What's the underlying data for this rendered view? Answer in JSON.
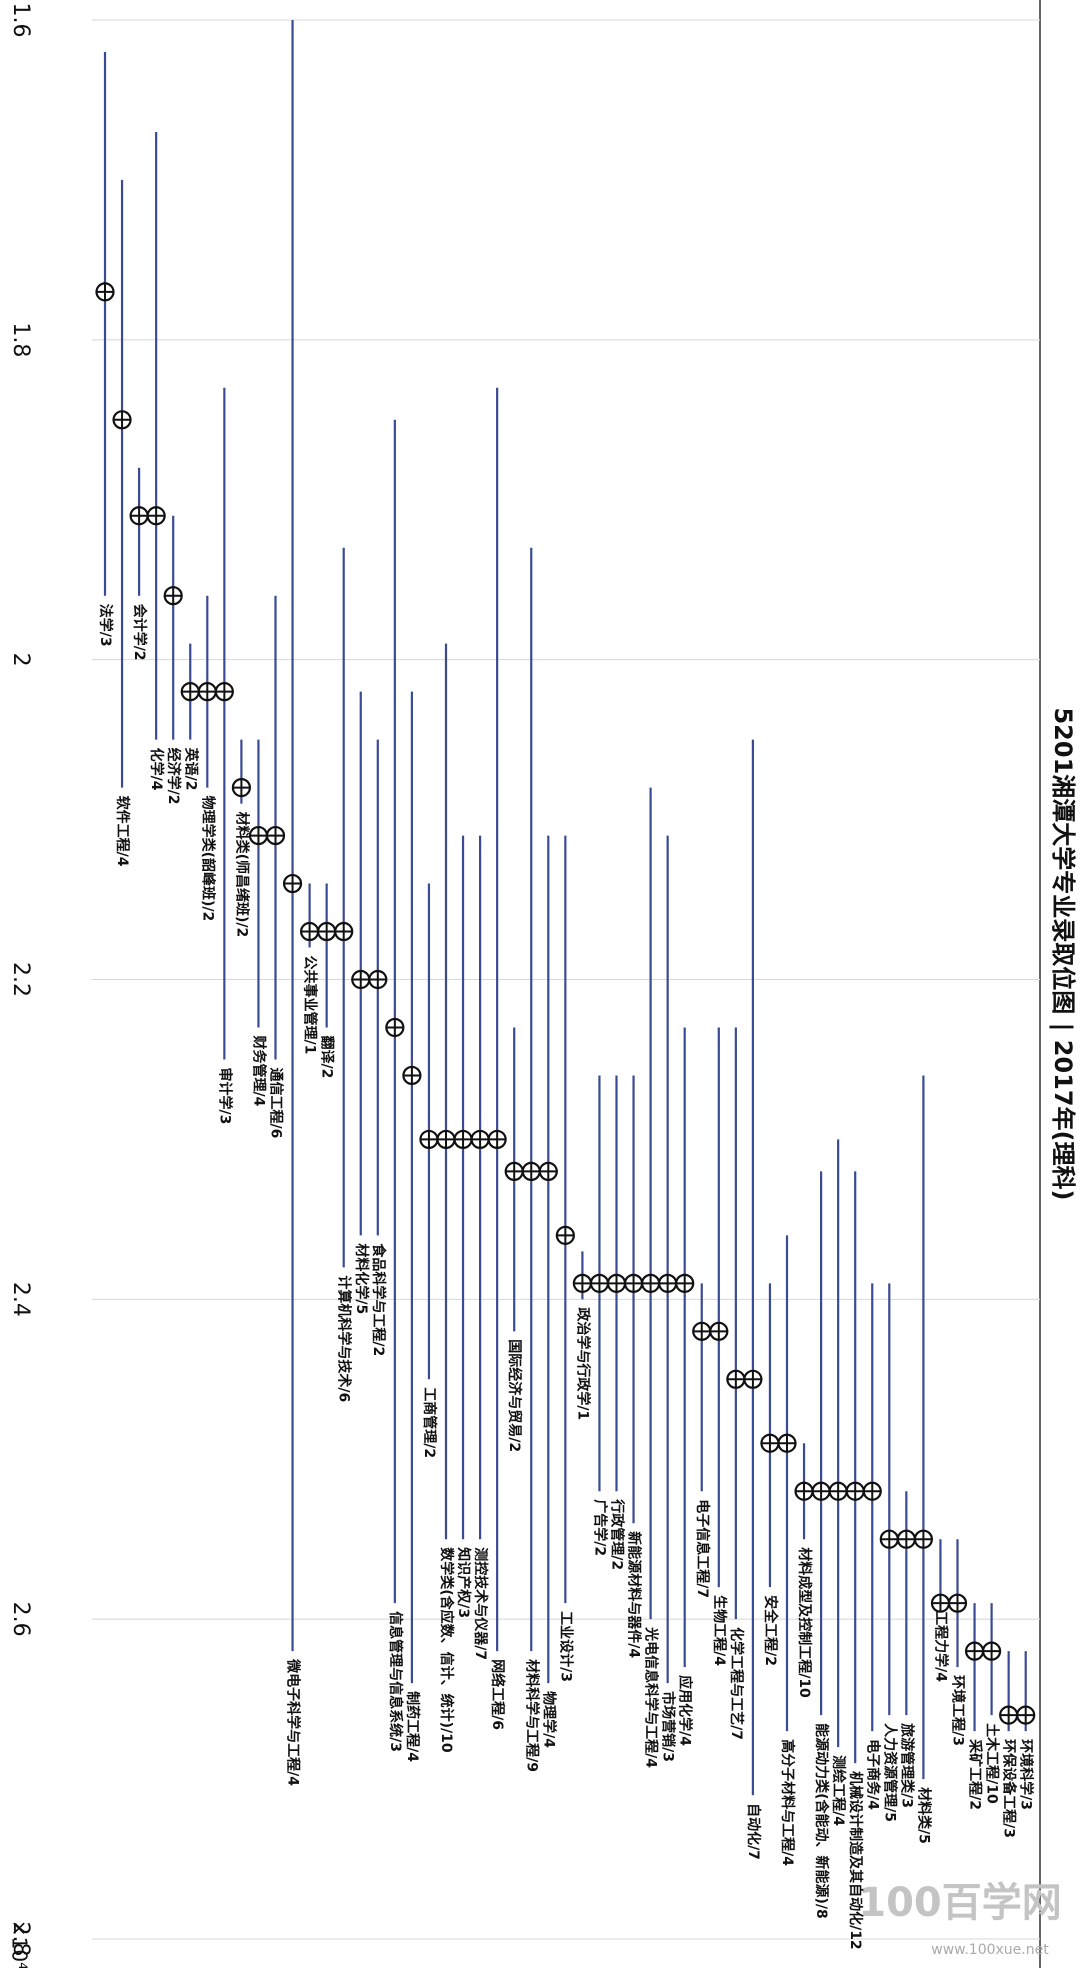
{
  "chart_data": {
    "type": "range-marker",
    "title": "5201湘潭大学专业录取位图 | 2017年(理科)",
    "axis_multiplier": "×10⁴",
    "watermark": [
      "100百学网",
      "www.100xue.net"
    ],
    "ylim": [
      1.6,
      2.8
    ],
    "yticks": [
      1.6,
      1.8,
      2,
      2.2,
      2.4,
      2.6,
      2.8
    ],
    "grid": true,
    "line_color": "#3b4a95",
    "marker_color": "#111111",
    "categories": [
      "法学/3",
      "软件工程/4",
      "会计学/2",
      "化学/4",
      "经济学/2",
      "英语/2",
      "物理学类(韶峰班)/2",
      "审计学/3",
      "材料类(师昌绪班)/2",
      "财务管理/4",
      "通信工程/6",
      "微电子科学与工程/4",
      "公共事业管理/1",
      "翻译/2",
      "计算机科学与技术/6",
      "材料化学/5",
      "食品科学与工程/2",
      "信息管理与信息系统/3",
      "制药工程/4",
      "工商管理/2",
      "数学类(含应数、信计、统计)/10",
      "知识产权/3",
      "测控技术与仪器/7",
      "网络工程/6",
      "国际经济与贸易/2",
      "材料科学与工程/9",
      "物理学/4",
      "工业设计/3",
      "政治学与行政学/1",
      "广告学/2",
      "行政管理/2",
      "新能源材料与器件/4",
      "光电信息科学与工程/4",
      "市场营销/3",
      "应用化学/4",
      "电子信息工程/7",
      "生物工程/4",
      "化学工程与工艺/7",
      "自动化/7",
      "安全工程/2",
      "高分子材料与工程/4",
      "材料成型及控制工程/10",
      "能源动力类(含能动、新能源)/8",
      "测绘工程/4",
      "机械设计制造及其自动化/12",
      "电子商务/4",
      "人力资源管理/5",
      "旅游管理类/3",
      "材料类/5",
      "工程力学/4",
      "环境工程/3",
      "采矿工程/2",
      "土木工程/10",
      "环保设备工程/3",
      "环境科学/3"
    ],
    "values": [
      1.77,
      1.85,
      1.91,
      1.91,
      1.96,
      2.02,
      2.02,
      2.02,
      2.08,
      2.11,
      2.11,
      2.14,
      2.17,
      2.17,
      2.17,
      2.2,
      2.2,
      2.23,
      2.26,
      2.3,
      2.3,
      2.3,
      2.3,
      2.3,
      2.32,
      2.32,
      2.32,
      2.36,
      2.39,
      2.39,
      2.39,
      2.39,
      2.39,
      2.39,
      2.39,
      2.42,
      2.42,
      2.45,
      2.45,
      2.49,
      2.49,
      2.52,
      2.52,
      2.52,
      2.52,
      2.52,
      2.55,
      2.55,
      2.55,
      2.59,
      2.59,
      2.62,
      2.62,
      2.66,
      2.66
    ],
    "lows": [
      1.62,
      1.7,
      1.88,
      1.67,
      1.91,
      1.99,
      1.96,
      1.83,
      2.05,
      2.05,
      1.96,
      1.6,
      2.14,
      2.14,
      1.93,
      2.02,
      2.05,
      1.85,
      2.02,
      2.14,
      1.99,
      2.11,
      2.11,
      1.83,
      2.23,
      1.93,
      2.11,
      2.11,
      2.37,
      2.26,
      2.26,
      2.26,
      2.08,
      2.11,
      2.23,
      2.39,
      2.23,
      2.23,
      2.05,
      2.39,
      2.36,
      2.49,
      2.32,
      2.3,
      2.32,
      2.39,
      2.39,
      2.52,
      2.26,
      2.55,
      2.55,
      2.59,
      2.59,
      2.62,
      2.62
    ],
    "highs": [
      1.96,
      2.08,
      1.96,
      2.05,
      2.05,
      2.05,
      2.08,
      2.25,
      2.09,
      2.23,
      2.25,
      2.62,
      2.18,
      2.23,
      2.38,
      2.36,
      2.36,
      2.59,
      2.64,
      2.45,
      2.55,
      2.55,
      2.55,
      2.62,
      2.42,
      2.62,
      2.64,
      2.59,
      2.4,
      2.52,
      2.52,
      2.54,
      2.6,
      2.64,
      2.63,
      2.52,
      2.58,
      2.6,
      2.71,
      2.58,
      2.67,
      2.55,
      2.66,
      2.68,
      2.69,
      2.67,
      2.66,
      2.66,
      2.7,
      2.59,
      2.63,
      2.67,
      2.66,
      2.67,
      2.67
    ]
  }
}
